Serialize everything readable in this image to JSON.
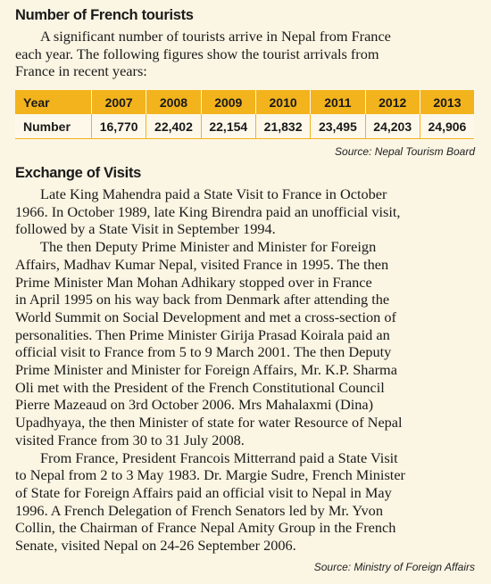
{
  "tourists_section": {
    "heading": "Number of French tourists",
    "intro_lines": [
      "A significant number of tourists arrive in Nepal from France",
      "each year. The following figures show the tourist arrivals from",
      "France in recent years:"
    ],
    "table": {
      "header_label": "Year",
      "row_label": "Number",
      "years": [
        "2007",
        "2008",
        "2009",
        "2010",
        "2011",
        "2012",
        "2013"
      ],
      "numbers": [
        "16,770",
        "22,402",
        "22,154",
        "21,832",
        "23,495",
        "24,203",
        "24,906"
      ]
    },
    "source": "Source: Nepal Tourism Board"
  },
  "visits_section": {
    "heading": "Exchange of Visits",
    "paragraphs": [
      [
        "Late King Mahendra paid a State Visit to France in October",
        "1966. In October 1989, late King Birendra paid an unofficial visit,",
        "followed by a State Visit in September 1994."
      ],
      [
        "The then Deputy Prime Minister and Minister for Foreign",
        "Affairs, Madhav Kumar Nepal, visited France in 1995. The then",
        "Prime Minister Man Mohan Adhikary stopped over in France",
        "in April 1995 on his way back from Denmark after attending the",
        "World Summit on Social Development and met a cross-section of",
        "personalities. Then Prime Minister Girija Prasad Koirala paid an",
        "official visit to France from 5 to 9 March 2001. The then Deputy",
        "Prime Minister and Minister for Foreign Affairs, Mr. K.P. Sharma",
        "Oli met with the President of the French Constitutional Council",
        "Pierre Mazeaud on 3rd October 2006. Mrs Mahalaxmi (Dina)",
        "Upadhyaya, the then Minister of state for water Resource of Nepal",
        "visited France from 30 to 31 July 2008."
      ],
      [
        "From France, President Francois Mitterrand paid a State Visit",
        "to Nepal from 2 to 3 May 1983. Dr. Margie Sudre, French Minister",
        "of State for Foreign Affairs paid an official visit to Nepal in May",
        "1996. A French Delegation of French Senators led by Mr. Yvon",
        "Collin, the Chairman of France Nepal Amity Group in the French",
        "Senate, visited Nepal on 24-26 September 2006."
      ]
    ],
    "source": "Source: Ministry of Foreign Affairs"
  },
  "colors": {
    "page_background": "#fbf5e3",
    "table_header": "#f2b31c",
    "text": "#1a1a1a"
  }
}
